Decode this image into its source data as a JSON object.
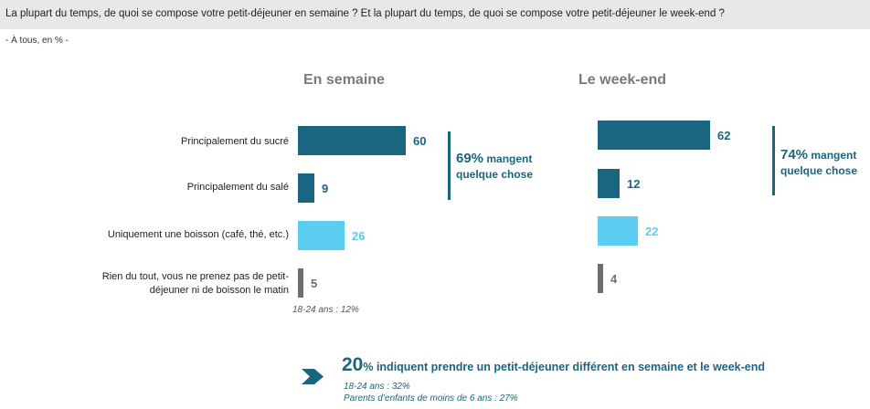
{
  "header": {
    "question": "La plupart du temps, de quoi se compose votre petit-déjeuner en semaine ? Et la plupart du temps, de quoi se compose votre petit-déjeuner le week-end  ?",
    "subtitle": "- À tous, en % -"
  },
  "chart_data": [
    {
      "type": "bar",
      "orientation": "horizontal",
      "title": "En semaine",
      "categories": [
        "Principalement du sucré",
        "Principalement du salé",
        "Uniquement une boisson (café, thé, etc.)",
        "Rien du tout, vous ne prenez pas de petit-déjeuner ni de boisson le matin"
      ],
      "values": [
        60,
        9,
        26,
        5
      ],
      "value_labels": [
        "60",
        "9",
        "26",
        "5"
      ],
      "colors": [
        "#1a6580",
        "#1a6580",
        "#5bcdf0",
        "#6e6e6e"
      ],
      "annotation": {
        "big": "69%",
        "line1": " mangent",
        "line2": "quelque chose"
      },
      "note": "18-24 ans : 12%"
    },
    {
      "type": "bar",
      "orientation": "horizontal",
      "title": "Le week-end",
      "categories": [
        "Principalement du sucré",
        "Principalement du salé",
        "Uniquement une boisson (café, thé, etc.)",
        "Rien du tout, vous ne prenez pas de petit-déjeuner ni de boisson le matin"
      ],
      "values": [
        62,
        12,
        22,
        4
      ],
      "value_labels": [
        "62",
        "12",
        "22",
        "4"
      ],
      "colors": [
        "#1a6580",
        "#1a6580",
        "#5bcdf0",
        "#6e6e6e"
      ],
      "annotation": {
        "big": "74%",
        "line1": " mangent",
        "line2": "quelque chose"
      }
    }
  ],
  "footer": {
    "big": "20",
    "main": "% indiquent prendre un petit-déjeuner différent en semaine et le week-end",
    "note1": "18-24 ans : 32%",
    "note2": "Parents d’enfants de moins de 6 ans : 27%"
  }
}
